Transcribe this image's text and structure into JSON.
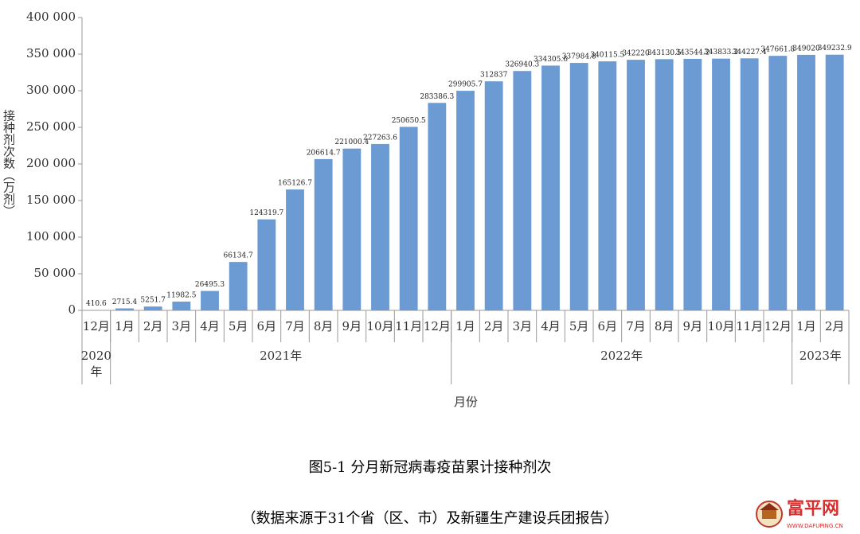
{
  "chart_data": {
    "type": "bar",
    "title": "图5-1  分月新冠病毒疫苗累计接种剂次",
    "subtitle": "（数据来源于31个省（区、市）及新疆生产建设兵团报告）",
    "y_label": "接种剂次数（万剂）",
    "x_label": "月份",
    "categories": [
      "12月",
      "1月",
      "2月",
      "3月",
      "4月",
      "5月",
      "6月",
      "7月",
      "8月",
      "9月",
      "10月",
      "11月",
      "12月",
      "1月",
      "2月",
      "3月",
      "4月",
      "5月",
      "6月",
      "7月",
      "8月",
      "9月",
      "10月",
      "11月",
      "12月",
      "1月",
      "2月"
    ],
    "year_labels": [
      "2020年",
      "2021年",
      "2022年",
      "2023年"
    ],
    "values": [
      410.6,
      2715.4,
      5251.7,
      11982.5,
      26495.3,
      66134.7,
      124319.7,
      165126.7,
      206614.7,
      221000.4,
      227263.6,
      250650.5,
      283386.3,
      299905.7,
      312837,
      326940.3,
      334305.6,
      337984.8,
      340115.5,
      342220,
      343130.5,
      343544.2,
      343833.2,
      344227.4,
      347661.8,
      349020,
      349232.9
    ],
    "color": "#6b9bd2",
    "ylim": [
      0,
      400000
    ],
    "yticks": [
      0,
      {
        "value": 50000,
        "label": "50 000"
      },
      {
        "value": 100000,
        "label": "100 000"
      },
      {
        "value": 150000,
        "label": "150 000"
      },
      {
        "value": 200000,
        "label": "200 000"
      },
      {
        "value": 250000,
        "label": "250 000"
      },
      {
        "value": 300000,
        "label": "300 000"
      },
      {
        "value": 350000,
        "label": "350 000"
      },
      {
        "value": 400000,
        "label": "400 000"
      }
    ],
    "grid": false
  },
  "watermark": {
    "name": "富平网",
    "url": "WWW.DAFUPING.CN"
  }
}
